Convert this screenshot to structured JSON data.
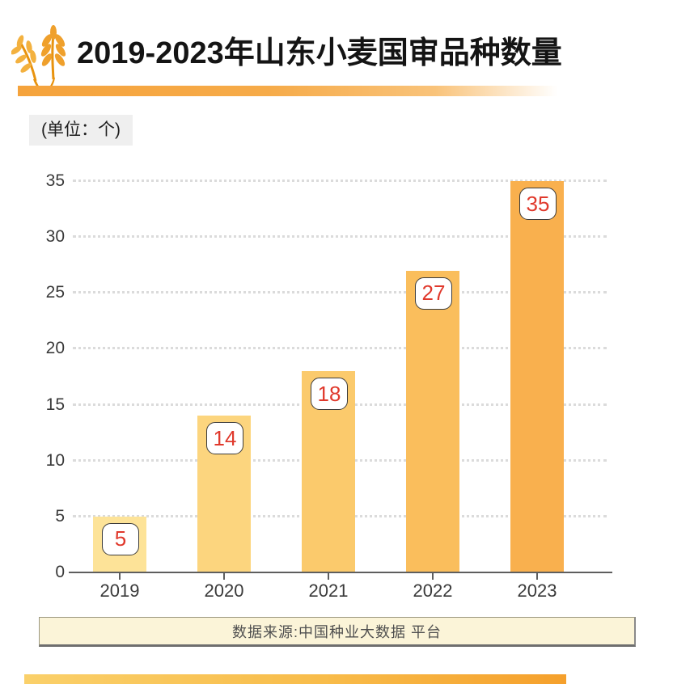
{
  "header": {
    "title": "2019-2023年山东小麦国审品种数量"
  },
  "unit_label": "(单位：个)",
  "chart_data": {
    "type": "bar",
    "title": "2019-2023年山东小麦国审品种数量",
    "unit": "个",
    "categories": [
      "2019",
      "2020",
      "2021",
      "2022",
      "2023"
    ],
    "values": [
      5,
      14,
      18,
      27,
      35
    ],
    "ylim": [
      0,
      35
    ],
    "yticks": [
      0,
      5,
      10,
      15,
      20,
      25,
      30,
      35
    ],
    "grid": "horizontal-dotted",
    "legend": "none",
    "bar_colors": [
      "#FDE398",
      "#FCD57E",
      "#FBCA6C",
      "#FABE5C",
      "#F9B04E"
    ],
    "value_label_color": "#E0392C",
    "value_label_style": "white rounded chip with dark border inside bar top"
  },
  "source": {
    "text": "数据来源:中国种业大数据 平台"
  },
  "colors": {
    "accent_orange": "#F5A33C",
    "grid": "#DBDBDB",
    "axis": "#5E5E5E",
    "source_bg": "#FBF4D8",
    "unit_bg": "#EFEFEF"
  }
}
